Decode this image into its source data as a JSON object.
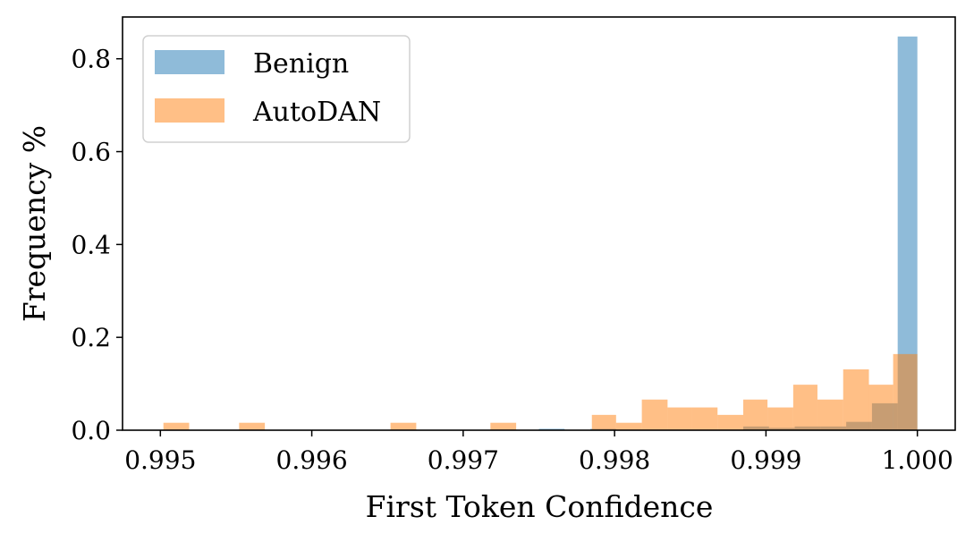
{
  "chart_data": {
    "type": "bar",
    "xlabel": "First Token Confidence",
    "ylabel": "Frequency %",
    "xlim": [
      0.99475,
      1.00025
    ],
    "ylim": [
      0,
      0.89
    ],
    "x_ticks": [
      0.995,
      0.996,
      0.997,
      0.998,
      0.999,
      1.0
    ],
    "x_tick_labels": [
      "0.995",
      "0.996",
      "0.997",
      "0.998",
      "0.999",
      "1.000"
    ],
    "y_ticks": [
      0.0,
      0.2,
      0.4,
      0.6,
      0.8
    ],
    "y_tick_labels": [
      "0.0",
      "0.2",
      "0.4",
      "0.6",
      "0.8"
    ],
    "legend_position": "top-left",
    "series": [
      {
        "name": "Benign",
        "color": "#1f77b4",
        "opacity": 0.5,
        "bins": [
          {
            "x0": 0.9975,
            "x1": 0.99767,
            "value": 0.003
          },
          {
            "x0": 0.99784,
            "x1": 0.99801,
            "value": 0.003
          },
          {
            "x0": 0.99885,
            "x1": 0.99902,
            "value": 0.008
          },
          {
            "x0": 0.99902,
            "x1": 0.99919,
            "value": 0.005
          },
          {
            "x0": 0.99919,
            "x1": 0.99936,
            "value": 0.008
          },
          {
            "x0": 0.99936,
            "x1": 0.99953,
            "value": 0.008
          },
          {
            "x0": 0.99953,
            "x1": 0.9997,
            "value": 0.018
          },
          {
            "x0": 0.9997,
            "x1": 0.99987,
            "value": 0.058
          },
          {
            "x0": 0.99987,
            "x1": 1.0,
            "value": 0.848
          }
        ]
      },
      {
        "name": "AutoDAN",
        "color": "#ff7f0e",
        "opacity": 0.5,
        "bins": [
          {
            "x0": 0.99502,
            "x1": 0.99519,
            "value": 0.016
          },
          {
            "x0": 0.99552,
            "x1": 0.99569,
            "value": 0.016
          },
          {
            "x0": 0.99652,
            "x1": 0.99669,
            "value": 0.016
          },
          {
            "x0": 0.99718,
            "x1": 0.99735,
            "value": 0.016
          },
          {
            "x0": 0.99785,
            "x1": 0.99801,
            "value": 0.033
          },
          {
            "x0": 0.99801,
            "x1": 0.99818,
            "value": 0.016
          },
          {
            "x0": 0.99818,
            "x1": 0.99835,
            "value": 0.066
          },
          {
            "x0": 0.99835,
            "x1": 0.99851,
            "value": 0.049
          },
          {
            "x0": 0.99851,
            "x1": 0.99868,
            "value": 0.049
          },
          {
            "x0": 0.99868,
            "x1": 0.99885,
            "value": 0.033
          },
          {
            "x0": 0.99885,
            "x1": 0.99901,
            "value": 0.066
          },
          {
            "x0": 0.99901,
            "x1": 0.99918,
            "value": 0.049
          },
          {
            "x0": 0.99918,
            "x1": 0.99934,
            "value": 0.098
          },
          {
            "x0": 0.99934,
            "x1": 0.99951,
            "value": 0.066
          },
          {
            "x0": 0.99951,
            "x1": 0.99968,
            "value": 0.131
          },
          {
            "x0": 0.99968,
            "x1": 0.99984,
            "value": 0.098
          },
          {
            "x0": 0.99984,
            "x1": 1.0,
            "value": 0.164
          }
        ]
      }
    ]
  }
}
